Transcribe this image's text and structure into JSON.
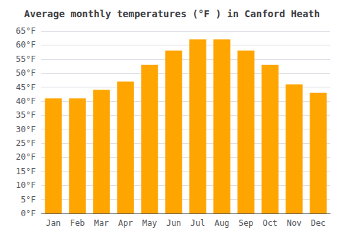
{
  "chart_data": {
    "type": "bar",
    "title": "Average monthly temperatures (°F ) in Canford Heath",
    "categories": [
      "Jan",
      "Feb",
      "Mar",
      "Apr",
      "May",
      "Jun",
      "Jul",
      "Aug",
      "Sep",
      "Oct",
      "Nov",
      "Dec"
    ],
    "values": [
      41,
      41,
      44,
      47,
      53,
      58,
      62,
      62,
      58,
      53,
      46,
      43
    ],
    "color": "#FFA500",
    "ylim": [
      0,
      65
    ],
    "yticks": [
      {
        "value": 0,
        "label": "0°F"
      },
      {
        "value": 5,
        "label": "5°F"
      },
      {
        "value": 10,
        "label": "10°F"
      },
      {
        "value": 15,
        "label": "15°F"
      },
      {
        "value": 20,
        "label": "20°F"
      },
      {
        "value": 25,
        "label": "25°F"
      },
      {
        "value": 30,
        "label": "30°F"
      },
      {
        "value": 35,
        "label": "35°F"
      },
      {
        "value": 40,
        "label": "40°F"
      },
      {
        "value": 45,
        "label": "45°F"
      },
      {
        "value": 50,
        "label": "50°F"
      },
      {
        "value": 55,
        "label": "55°F"
      },
      {
        "value": 60,
        "label": "60°F"
      },
      {
        "value": 65,
        "label": "65°F"
      }
    ],
    "grid": true
  }
}
